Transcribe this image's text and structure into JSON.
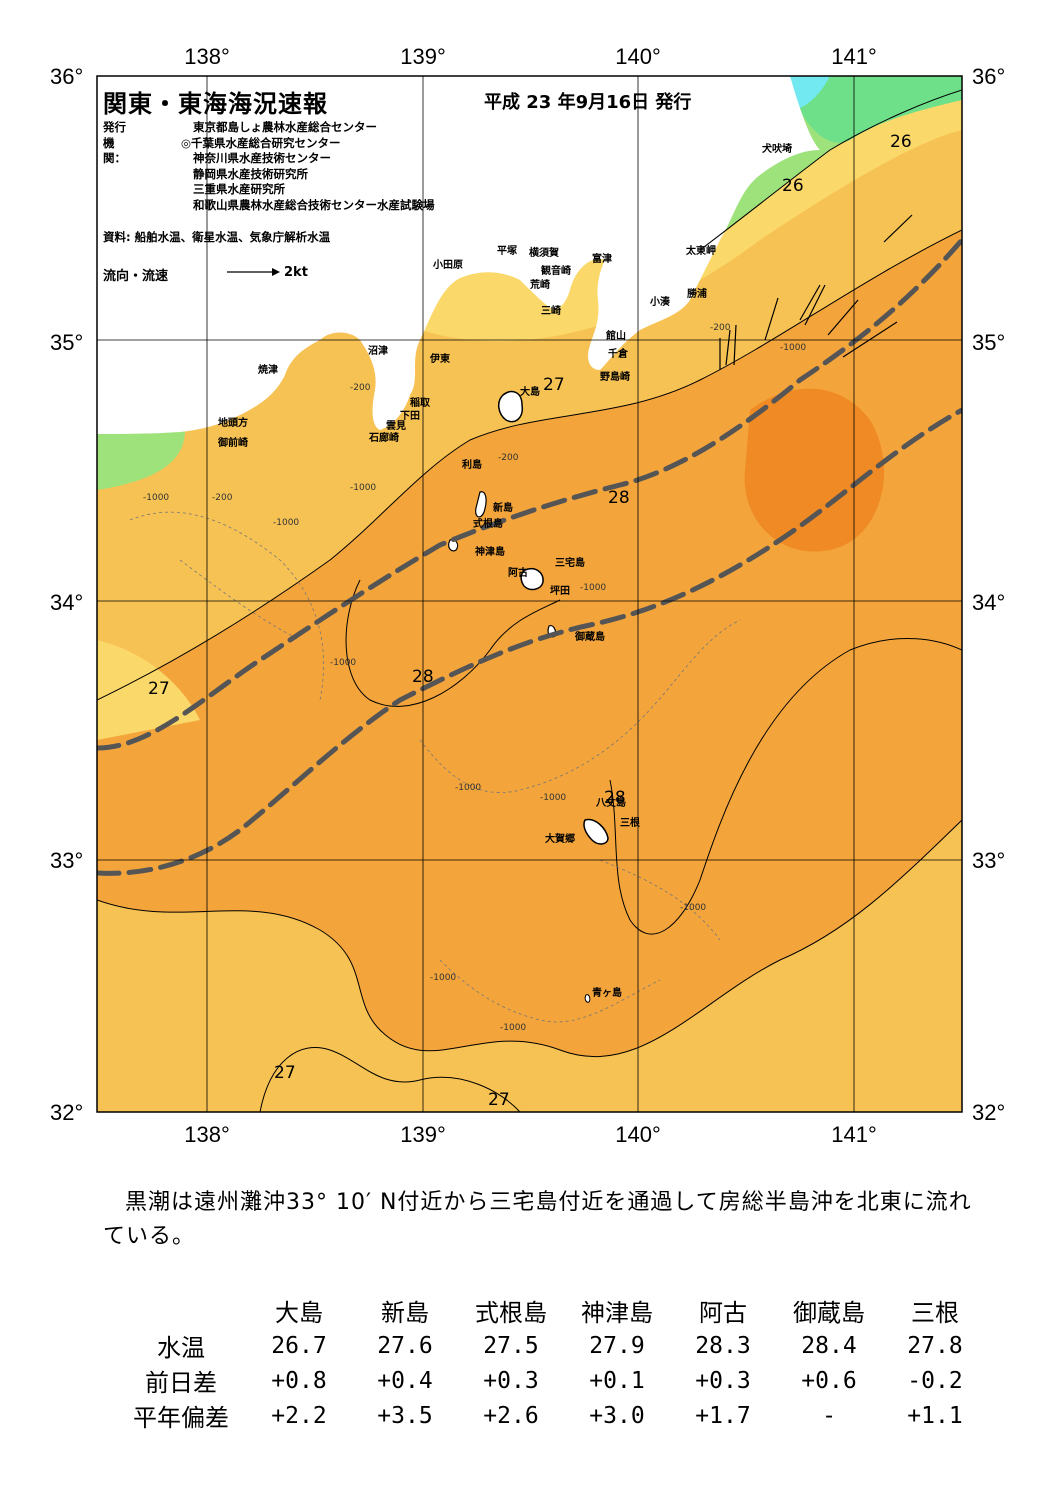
{
  "header": {
    "title": "関東・東海海況速報",
    "issue_date": "平成 23 年9月16日 発行",
    "agency_label": "発行機関：",
    "agencies": [
      "東京都島しょ農林水産総合センター",
      "◎千葉県水産総合研究センター",
      "神奈川県水産技術センター",
      "静岡県水産技術研究所",
      "三重県水産研究所",
      "和歌山県農林水産総合技術センター水産試験場"
    ],
    "source": "資料: 船舶水温、衛星水温、気象庁解析水温",
    "legend_label": "流向・流速",
    "legend_scale": "2kt"
  },
  "axes": {
    "lon_labels": [
      "138°",
      "139°",
      "140°",
      "141°"
    ],
    "lat_labels": [
      "36°",
      "35°",
      "34°",
      "33°",
      "32°"
    ]
  },
  "map": {
    "colors": {
      "water_27": "#fbd86a",
      "water_27_5": "#f7c254",
      "water_28": "#f3a53c",
      "water_28_5": "#f08a24",
      "water_26": "#9ee27c",
      "water_25": "#6fe08a",
      "water_cold": "#72e8f0",
      "land": "#ffffff",
      "kuroshio": "#555555"
    },
    "place_labels": [
      "大島",
      "利島",
      "新島",
      "式根島",
      "神津島",
      "三宅島",
      "阿古",
      "坪田",
      "御蔵島",
      "八丈島",
      "三根",
      "大賀郷",
      "青ヶ島",
      "犬吠埼",
      "太東岬",
      "勝浦",
      "小湊",
      "富津",
      "館山",
      "千倉",
      "野島崎",
      "観音崎",
      "荒崎",
      "三崎",
      "横須賀",
      "平塚",
      "小田原",
      "沼津",
      "伊東",
      "稲取",
      "下田",
      "雲見",
      "石廊崎",
      "焼津",
      "地頭方",
      "御前崎"
    ],
    "isotherm_labels": [
      "26",
      "26",
      "27",
      "28",
      "28",
      "27",
      "28",
      "28",
      "27",
      "27"
    ],
    "depth_labels": [
      "-200",
      "-1000"
    ]
  },
  "summary": "黒潮は遠州灘沖33° 10′ N付近から三宅島付近を通過して房総半島沖を北東に流れている。",
  "observations": {
    "stations": [
      "大島",
      "新島",
      "式根島",
      "神津島",
      "阿古",
      "御蔵島",
      "三根"
    ],
    "rows": [
      {
        "label": "水温",
        "values": [
          "26.7",
          "27.6",
          "27.5",
          "27.9",
          "28.3",
          "28.4",
          "27.8"
        ]
      },
      {
        "label": "前日差",
        "values": [
          "+0.8",
          "+0.4",
          "+0.3",
          "+0.1",
          "+0.3",
          "+0.6",
          "-0.2"
        ]
      },
      {
        "label": "平年偏差",
        "values": [
          "+2.2",
          "+3.5",
          "+2.6",
          "+3.0",
          "+1.7",
          "-",
          "+1.1"
        ]
      }
    ]
  }
}
